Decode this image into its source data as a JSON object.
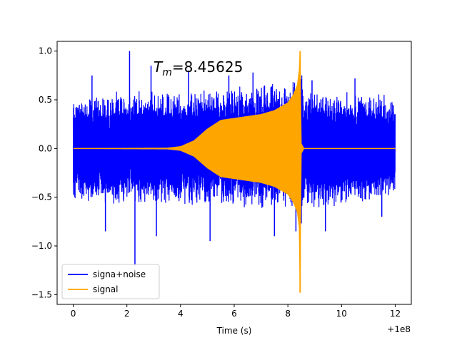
{
  "chart_data": {
    "type": "line",
    "title": "",
    "xlabel": "Time (s)",
    "ylabel": "",
    "x_offset_label": "+1e8",
    "xlim": [
      -0.6,
      12.6
    ],
    "ylim": [
      -1.6,
      1.1
    ],
    "xticks": [
      0,
      2,
      4,
      6,
      8,
      10,
      12
    ],
    "xtick_labels": [
      "0",
      "2",
      "4",
      "6",
      "8",
      "10",
      "12"
    ],
    "yticks": [
      -1.5,
      -1.0,
      -0.5,
      0.0,
      0.5,
      1.0
    ],
    "ytick_labels": [
      "−1.5",
      "−1.0",
      "−0.5",
      "0.0",
      "0.5",
      "1.0"
    ],
    "annotation": {
      "prefix": "T",
      "subscript": "m",
      "value": "=8.45625",
      "x": 3.0,
      "y": 0.85
    },
    "series": [
      {
        "name": "signa+noise",
        "color": "#0000ff",
        "x_range": [
          0,
          12
        ],
        "description_envelope": "noise amplitude ~0.5 with spikes to +1.0 and -1.2",
        "envelope": {
          "x": [
            0,
            2,
            4,
            6,
            8,
            8.4,
            8.46,
            8.6,
            10,
            12
          ],
          "upper": [
            0.55,
            0.6,
            0.6,
            0.65,
            0.7,
            0.75,
            1.0,
            0.6,
            0.6,
            0.55
          ],
          "lower": [
            -0.55,
            -0.6,
            -0.6,
            -0.6,
            -0.65,
            -0.7,
            -1.0,
            -0.65,
            -0.6,
            -0.55
          ]
        },
        "spikes": [
          {
            "x": 0.7,
            "y": 0.75
          },
          {
            "x": 1.2,
            "y": -0.85
          },
          {
            "x": 2.1,
            "y": 1.0
          },
          {
            "x": 2.3,
            "y": -1.2
          },
          {
            "x": 2.9,
            "y": 0.85
          },
          {
            "x": 3.1,
            "y": -0.9
          },
          {
            "x": 4.3,
            "y": 0.8
          },
          {
            "x": 5.1,
            "y": -0.95
          },
          {
            "x": 5.8,
            "y": 0.75
          },
          {
            "x": 6.7,
            "y": 0.78
          },
          {
            "x": 7.5,
            "y": -0.9
          },
          {
            "x": 8.3,
            "y": -0.85
          },
          {
            "x": 8.9,
            "y": 0.7
          },
          {
            "x": 9.4,
            "y": -0.85
          },
          {
            "x": 10.5,
            "y": 0.72
          },
          {
            "x": 11.5,
            "y": -0.7
          }
        ]
      },
      {
        "name": "signal",
        "color": "#ffa500",
        "x_range": [
          0,
          12
        ],
        "merger_time": 8.45625,
        "envelope": {
          "x": [
            0,
            3.5,
            4.0,
            4.5,
            5.0,
            5.5,
            6.0,
            7.0,
            7.5,
            8.0,
            8.2,
            8.35,
            8.42,
            8.45625,
            8.5,
            8.6,
            12
          ],
          "upper": [
            0.0,
            0.005,
            0.02,
            0.08,
            0.2,
            0.29,
            0.31,
            0.35,
            0.39,
            0.47,
            0.55,
            0.65,
            0.8,
            1.0,
            0.05,
            0.0,
            0.0
          ],
          "lower": [
            0.0,
            -0.005,
            -0.02,
            -0.08,
            -0.2,
            -0.29,
            -0.31,
            -0.35,
            -0.39,
            -0.47,
            -0.55,
            -0.65,
            -0.8,
            -1.48,
            -0.05,
            0.0,
            0.0
          ]
        }
      }
    ],
    "legend": {
      "position": "lower-left",
      "entries": [
        "signa+noise",
        "signal"
      ]
    }
  }
}
